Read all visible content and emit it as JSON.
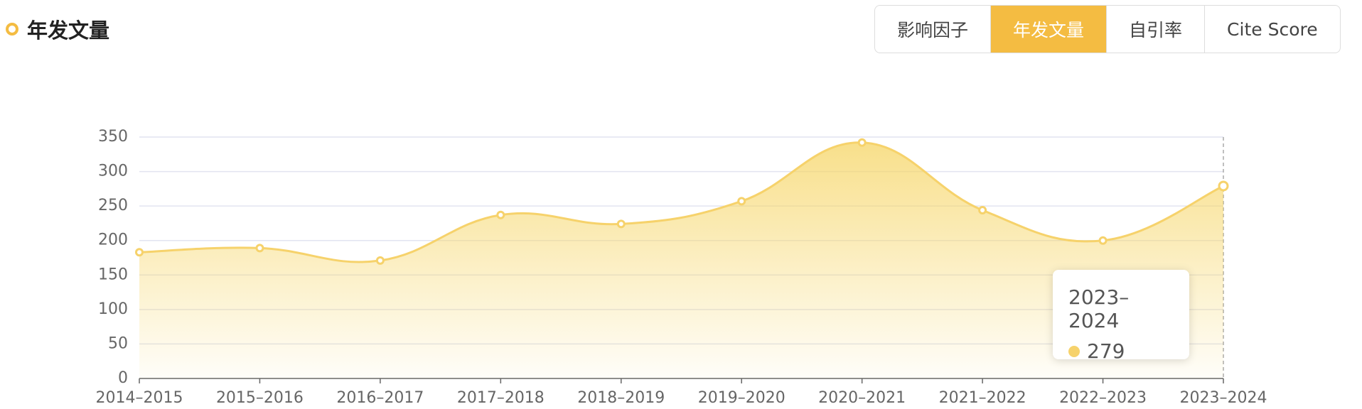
{
  "header": {
    "title": "年发文量"
  },
  "tabs": [
    "影响因子",
    "年发文量",
    "自引率",
    "Cite Score"
  ],
  "active_tab": 1,
  "chart_data": {
    "type": "area",
    "categories": [
      "2014–2015",
      "2015–2016",
      "2016–2017",
      "2017–2018",
      "2018–2019",
      "2019–2020",
      "2020–2021",
      "2021–2022",
      "2022–2023",
      "2023–2024"
    ],
    "series": [
      {
        "color": "#f6d26b",
        "values": [
          183,
          189,
          171,
          237,
          224,
          257,
          342,
          244,
          200,
          279
        ]
      }
    ],
    "ylim": [
      0,
      350
    ],
    "yticks": [
      0,
      50,
      100,
      150,
      200,
      250,
      300,
      350
    ],
    "grid": true,
    "tooltip_index": 9
  }
}
